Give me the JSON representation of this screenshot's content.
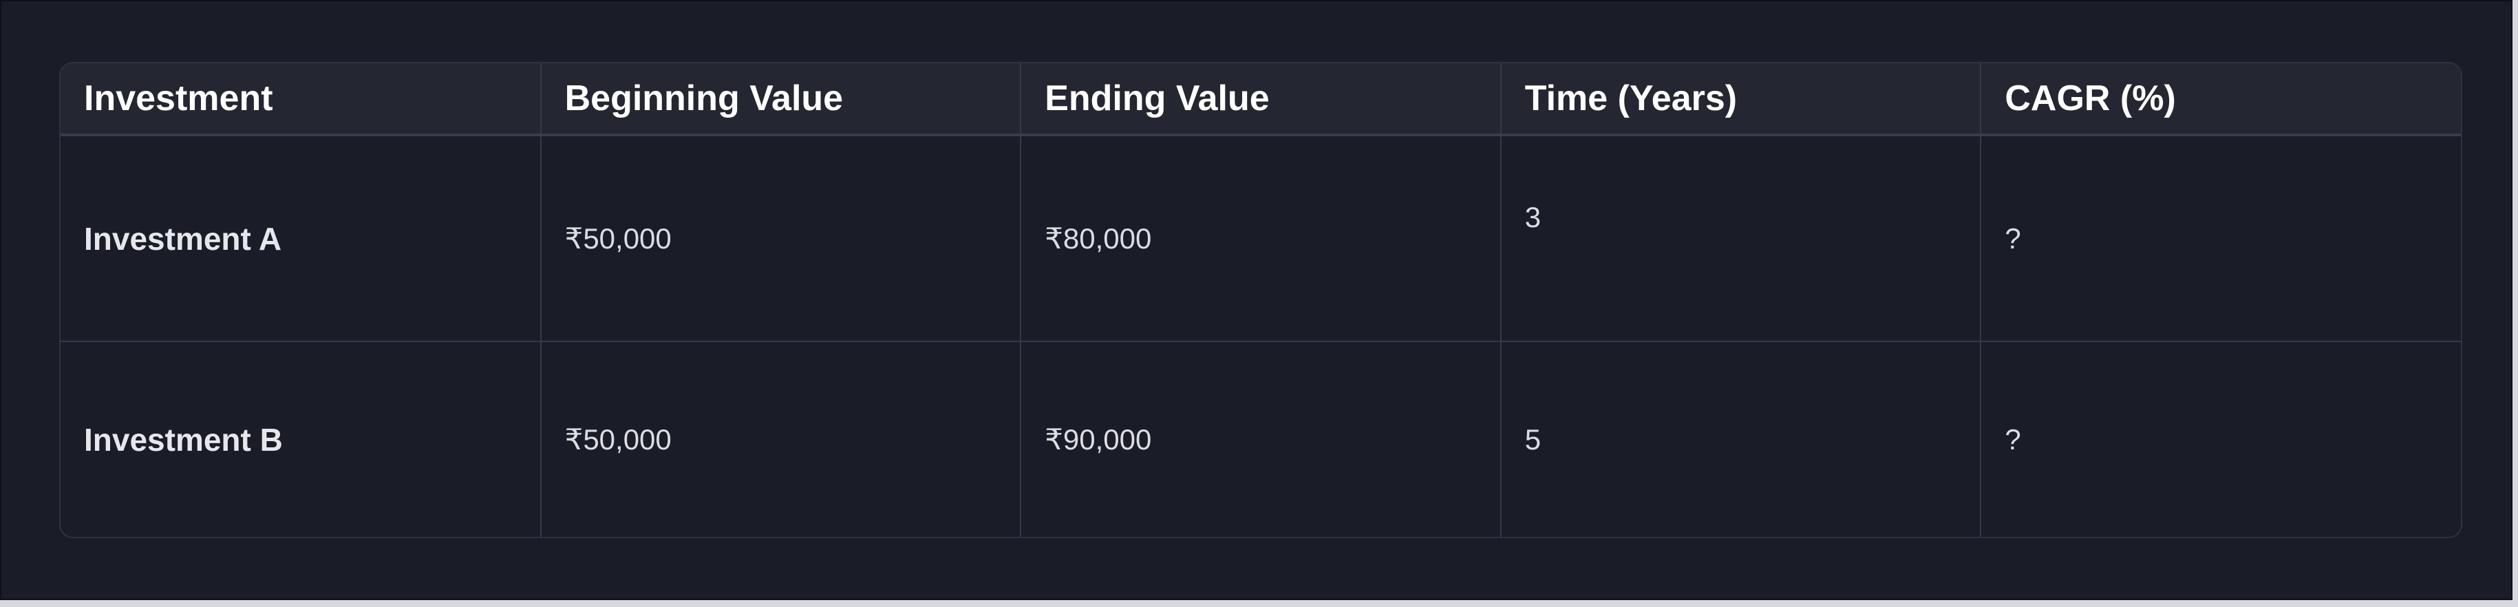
{
  "table": {
    "headers": [
      "Investment",
      "Beginning Value",
      "Ending Value",
      "Time (Years)",
      "CAGR (%)"
    ],
    "rows": [
      {
        "investment": "Investment A",
        "beginning_value": "₹50,000",
        "ending_value": "₹80,000",
        "time_years": "3",
        "cagr": "?"
      },
      {
        "investment": "Investment B",
        "beginning_value": "₹50,000",
        "ending_value": "₹90,000",
        "time_years": "5",
        "cagr": "?"
      }
    ]
  }
}
